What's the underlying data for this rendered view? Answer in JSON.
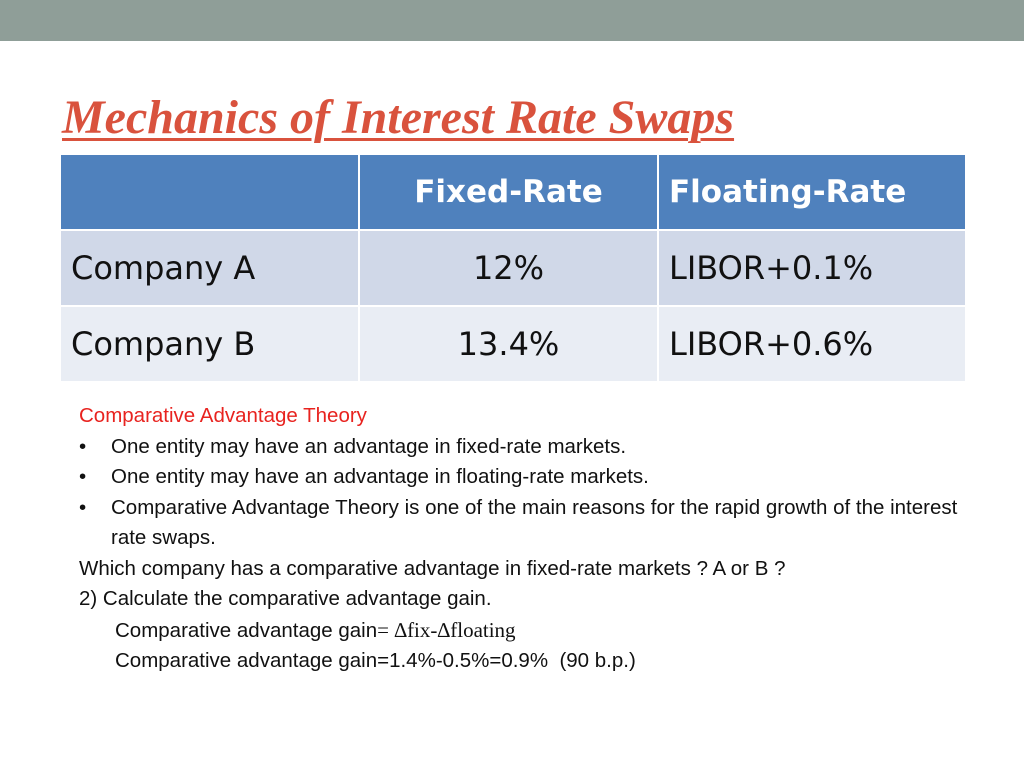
{
  "slide": {
    "title": "Mechanics of Interest Rate Swaps"
  },
  "table": {
    "headers": [
      "",
      "Fixed-Rate",
      "Floating-Rate"
    ],
    "rows": [
      {
        "company": "Company A",
        "fixed": "12%",
        "floating": "LIBOR+0.1%"
      },
      {
        "company": "Company B",
        "fixed": "13.4%",
        "floating": "LIBOR+0.6%"
      }
    ]
  },
  "notes": {
    "heading": "Comparative Advantage Theory",
    "bullet_symbol": "•",
    "bullets": [
      "One entity may have an advantage in fixed-rate markets.",
      "One entity may have an advantage in floating-rate markets.",
      "Comparative Advantage Theory is one of the main reasons for the rapid growth of the interest rate swaps."
    ],
    "question": "Which company has a comparative advantage in fixed-rate markets ? A or B ?",
    "task": "2) Calculate the comparative advantage gain.",
    "formula_label": "Comparative advantage gain",
    "formula_expression": "= ∆fix-∆floating",
    "result": "Comparative advantage gain=1.4%-0.5%=0.9%  (90 b.p.)"
  },
  "colors": {
    "top_bar": "#8f9e98",
    "title": "#d9523d",
    "table_header": "#4f81bd",
    "table_row_1": "#d0d8e8",
    "table_row_2": "#e9edf4",
    "heading_red": "#e8231f"
  }
}
